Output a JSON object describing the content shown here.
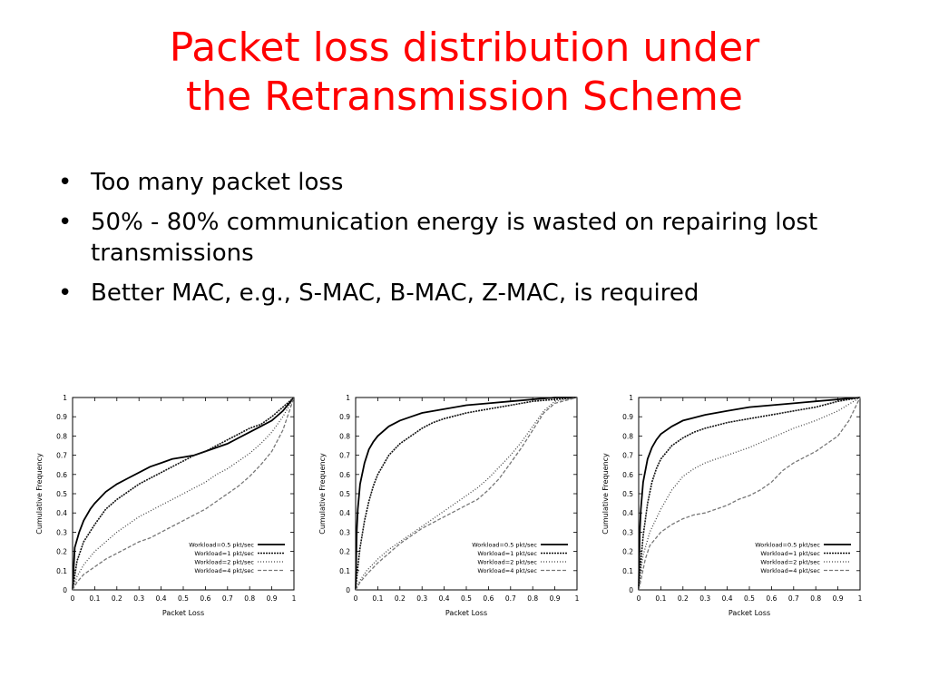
{
  "slide": {
    "title_lines": [
      "Packet loss distribution under",
      "the Retransmission Scheme"
    ],
    "bullets": [
      "Too many packet loss",
      "50% - 80% communication energy is wasted on repairing lost transmissions",
      "Better MAC, e.g., S-MAC, B-MAC, Z-MAC, is required"
    ],
    "bullet_glyph": "•"
  },
  "colors": {
    "title": "#ff0000",
    "text": "#000000",
    "axis": "#000000"
  },
  "chart_data": [
    {
      "type": "line",
      "xlabel": "Packet Loss",
      "ylabel": "Cumulative Frequency",
      "xlim": [
        0,
        1
      ],
      "ylim": [
        0,
        1
      ],
      "xticks": [
        "0",
        "0.1",
        "0.2",
        "0.3",
        "0.4",
        "0.5",
        "0.6",
        "0.7",
        "0.8",
        "0.9",
        "1"
      ],
      "yticks": [
        "0",
        "0.1",
        "0.2",
        "0.3",
        "0.4",
        "0.5",
        "0.6",
        "0.7",
        "0.8",
        "0.9",
        "1"
      ],
      "grid": false,
      "legend": "bottom-right",
      "series": [
        {
          "name": "Workload=0.5 pkt/sec",
          "style": "solid",
          "x": [
            0,
            0.01,
            0.03,
            0.05,
            0.08,
            0.1,
            0.15,
            0.2,
            0.25,
            0.3,
            0.35,
            0.4,
            0.45,
            0.5,
            0.55,
            0.6,
            0.65,
            0.7,
            0.75,
            0.8,
            0.85,
            0.9,
            0.95,
            1
          ],
          "y": [
            0,
            0.22,
            0.3,
            0.36,
            0.42,
            0.45,
            0.51,
            0.55,
            0.58,
            0.61,
            0.64,
            0.66,
            0.68,
            0.69,
            0.7,
            0.72,
            0.74,
            0.76,
            0.79,
            0.82,
            0.85,
            0.88,
            0.93,
            1
          ]
        },
        {
          "name": "Workload=1 pkt/sec",
          "style": "dense-dash",
          "x": [
            0,
            0.02,
            0.05,
            0.1,
            0.15,
            0.2,
            0.25,
            0.3,
            0.35,
            0.4,
            0.45,
            0.5,
            0.55,
            0.6,
            0.65,
            0.7,
            0.75,
            0.8,
            0.85,
            0.9,
            0.95,
            1
          ],
          "y": [
            0,
            0.15,
            0.25,
            0.34,
            0.42,
            0.47,
            0.51,
            0.55,
            0.58,
            0.61,
            0.64,
            0.67,
            0.7,
            0.72,
            0.75,
            0.78,
            0.81,
            0.84,
            0.86,
            0.9,
            0.95,
            1
          ]
        },
        {
          "name": "Workload=2 pkt/sec",
          "style": "dotted",
          "x": [
            0,
            0.02,
            0.05,
            0.1,
            0.15,
            0.2,
            0.25,
            0.3,
            0.35,
            0.4,
            0.45,
            0.5,
            0.55,
            0.6,
            0.65,
            0.7,
            0.75,
            0.8,
            0.85,
            0.9,
            0.95,
            1
          ],
          "y": [
            0,
            0.07,
            0.13,
            0.2,
            0.25,
            0.3,
            0.34,
            0.38,
            0.41,
            0.44,
            0.47,
            0.5,
            0.53,
            0.56,
            0.6,
            0.63,
            0.67,
            0.71,
            0.76,
            0.82,
            0.9,
            1
          ]
        },
        {
          "name": "Workload=4 pkt/sec",
          "style": "long-dash",
          "x": [
            0,
            0.02,
            0.05,
            0.1,
            0.15,
            0.2,
            0.25,
            0.3,
            0.35,
            0.4,
            0.45,
            0.5,
            0.55,
            0.6,
            0.65,
            0.7,
            0.75,
            0.8,
            0.85,
            0.9,
            0.95,
            1
          ],
          "y": [
            0,
            0.04,
            0.08,
            0.12,
            0.16,
            0.19,
            0.22,
            0.25,
            0.27,
            0.3,
            0.33,
            0.36,
            0.39,
            0.42,
            0.46,
            0.5,
            0.54,
            0.59,
            0.65,
            0.72,
            0.83,
            1
          ]
        }
      ]
    },
    {
      "type": "line",
      "xlabel": "Packet Loss",
      "ylabel": "Cumulative Frequency",
      "xlim": [
        0,
        1
      ],
      "ylim": [
        0,
        1
      ],
      "xticks": [
        "0",
        "0.1",
        "0.2",
        "0.3",
        "0.4",
        "0.5",
        "0.6",
        "0.7",
        "0.8",
        "0.9",
        "1"
      ],
      "yticks": [
        "0",
        "0.1",
        "0.2",
        "0.3",
        "0.4",
        "0.5",
        "0.6",
        "0.7",
        "0.8",
        "0.9",
        "1"
      ],
      "grid": false,
      "legend": "bottom-right",
      "series": [
        {
          "name": "Workload=0.5 pkt/sec",
          "style": "solid",
          "x": [
            0,
            0.005,
            0.01,
            0.02,
            0.04,
            0.06,
            0.08,
            0.1,
            0.15,
            0.2,
            0.25,
            0.3,
            0.4,
            0.5,
            0.6,
            0.7,
            0.8,
            0.9,
            1
          ],
          "y": [
            0,
            0.3,
            0.42,
            0.55,
            0.66,
            0.73,
            0.77,
            0.8,
            0.85,
            0.88,
            0.9,
            0.92,
            0.94,
            0.96,
            0.97,
            0.98,
            0.99,
            1,
            1
          ]
        },
        {
          "name": "Workload=1 pkt/sec",
          "style": "dense-dash",
          "x": [
            0,
            0.01,
            0.02,
            0.04,
            0.06,
            0.08,
            0.1,
            0.15,
            0.2,
            0.25,
            0.3,
            0.35,
            0.4,
            0.5,
            0.6,
            0.7,
            0.8,
            0.9,
            1
          ],
          "y": [
            0,
            0.12,
            0.22,
            0.36,
            0.46,
            0.54,
            0.6,
            0.7,
            0.76,
            0.8,
            0.84,
            0.87,
            0.89,
            0.92,
            0.94,
            0.96,
            0.98,
            0.99,
            1
          ]
        },
        {
          "name": "Workload=2 pkt/sec",
          "style": "dotted",
          "x": [
            0,
            0.02,
            0.05,
            0.1,
            0.15,
            0.2,
            0.25,
            0.3,
            0.35,
            0.4,
            0.45,
            0.5,
            0.55,
            0.6,
            0.65,
            0.7,
            0.75,
            0.8,
            0.85,
            0.9,
            1
          ],
          "y": [
            0,
            0.05,
            0.1,
            0.16,
            0.21,
            0.25,
            0.29,
            0.33,
            0.37,
            0.41,
            0.45,
            0.49,
            0.53,
            0.58,
            0.64,
            0.7,
            0.77,
            0.85,
            0.93,
            0.98,
            1
          ]
        },
        {
          "name": "Workload=4 pkt/sec",
          "style": "long-dash",
          "x": [
            0,
            0.02,
            0.05,
            0.1,
            0.15,
            0.2,
            0.25,
            0.3,
            0.35,
            0.4,
            0.45,
            0.5,
            0.55,
            0.6,
            0.65,
            0.7,
            0.75,
            0.8,
            0.85,
            0.9,
            1
          ],
          "y": [
            0,
            0.04,
            0.08,
            0.14,
            0.19,
            0.24,
            0.28,
            0.32,
            0.35,
            0.38,
            0.41,
            0.44,
            0.47,
            0.52,
            0.58,
            0.66,
            0.74,
            0.83,
            0.92,
            0.97,
            1
          ]
        }
      ]
    },
    {
      "type": "line",
      "xlabel": "Packet Loss",
      "ylabel": "Cumulative Frequency",
      "xlim": [
        0,
        1
      ],
      "ylim": [
        0,
        1
      ],
      "xticks": [
        "0",
        "0.1",
        "0.2",
        "0.3",
        "0.4",
        "0.5",
        "0.6",
        "0.7",
        "0.8",
        "0.9",
        "1"
      ],
      "yticks": [
        "0",
        "0.1",
        "0.2",
        "0.3",
        "0.4",
        "0.5",
        "0.6",
        "0.7",
        "0.8",
        "0.9",
        "1"
      ],
      "grid": false,
      "legend": "bottom-right",
      "series": [
        {
          "name": "Workload=0.5 pkt/sec",
          "style": "solid",
          "x": [
            0,
            0.005,
            0.01,
            0.02,
            0.04,
            0.06,
            0.08,
            0.1,
            0.15,
            0.2,
            0.3,
            0.4,
            0.5,
            0.6,
            0.7,
            0.8,
            0.9,
            1
          ],
          "y": [
            0,
            0.3,
            0.42,
            0.56,
            0.68,
            0.74,
            0.78,
            0.81,
            0.85,
            0.88,
            0.91,
            0.93,
            0.95,
            0.96,
            0.97,
            0.98,
            0.99,
            1
          ]
        },
        {
          "name": "Workload=1 pkt/sec",
          "style": "dense-dash",
          "x": [
            0,
            0.01,
            0.02,
            0.04,
            0.06,
            0.08,
            0.1,
            0.15,
            0.2,
            0.25,
            0.3,
            0.4,
            0.5,
            0.6,
            0.7,
            0.8,
            0.9,
            1
          ],
          "y": [
            0,
            0.15,
            0.28,
            0.45,
            0.56,
            0.63,
            0.68,
            0.75,
            0.79,
            0.82,
            0.84,
            0.87,
            0.89,
            0.91,
            0.93,
            0.95,
            0.98,
            1
          ]
        },
        {
          "name": "Workload=2 pkt/sec",
          "style": "dotted",
          "x": [
            0,
            0.01,
            0.02,
            0.05,
            0.1,
            0.15,
            0.2,
            0.25,
            0.3,
            0.35,
            0.4,
            0.5,
            0.6,
            0.7,
            0.8,
            0.9,
            1
          ],
          "y": [
            0,
            0.1,
            0.18,
            0.3,
            0.42,
            0.52,
            0.59,
            0.63,
            0.66,
            0.68,
            0.7,
            0.74,
            0.79,
            0.84,
            0.88,
            0.93,
            1
          ]
        },
        {
          "name": "Workload=4 pkt/sec",
          "style": "long-dash",
          "x": [
            0,
            0.01,
            0.03,
            0.05,
            0.1,
            0.15,
            0.2,
            0.25,
            0.3,
            0.35,
            0.4,
            0.45,
            0.5,
            0.55,
            0.6,
            0.65,
            0.7,
            0.75,
            0.8,
            0.85,
            0.9,
            0.95,
            1
          ],
          "y": [
            0,
            0.05,
            0.16,
            0.23,
            0.3,
            0.34,
            0.37,
            0.39,
            0.4,
            0.42,
            0.44,
            0.47,
            0.49,
            0.52,
            0.56,
            0.62,
            0.66,
            0.69,
            0.72,
            0.76,
            0.8,
            0.88,
            1
          ]
        }
      ]
    }
  ]
}
